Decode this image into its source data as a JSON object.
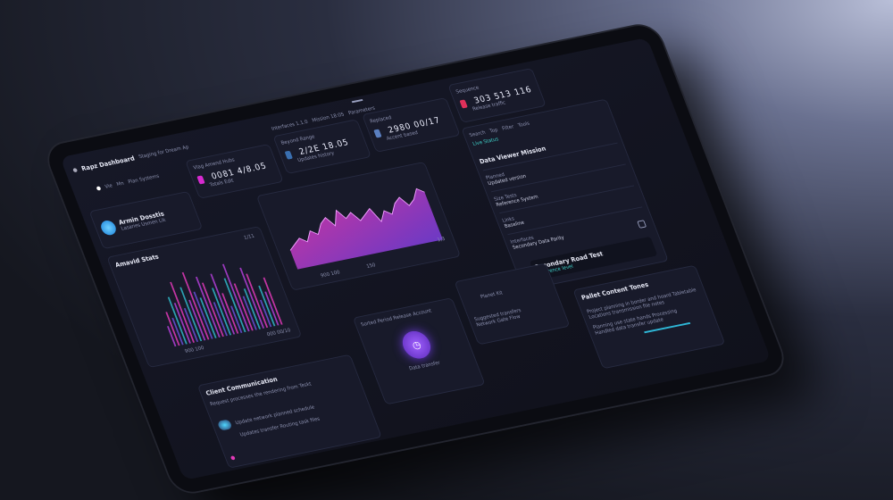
{
  "header": {
    "title": "Rapz Dashboard",
    "subtitle": "Staging for Dream Ap",
    "nav": [
      "Interfaces 1.1.0",
      "Mission 18:05",
      "Parameters"
    ],
    "sub": [
      "Vie",
      "Mn",
      "Plan Systems"
    ]
  },
  "stats": [
    {
      "label": "Vlag Amend Hubs",
      "value": "0081 4/8.05",
      "sub": "Totals Edit",
      "color": "#d62ad0"
    },
    {
      "label": "Beyond Range",
      "value": "2/2E 18.05",
      "sub": "Updates history",
      "color": "#3a6fb0"
    },
    {
      "label": "Replaced",
      "value": "2980 00/17",
      "sub": "Accent based",
      "color": "#5a7fc0"
    },
    {
      "label": "Sequence",
      "value": "303 513 116",
      "sub": "Release traffic",
      "color": "#e0305a"
    }
  ],
  "profile": {
    "name": "Armin Dosstis",
    "sub": "Lasaries Usmen Lik"
  },
  "bar_chart": {
    "label": "Amavid Stats",
    "footer": "900 100",
    "value": "000 00/10",
    "tick": "1/11",
    "values": [
      3,
      5,
      4,
      7,
      6,
      9,
      5,
      8,
      6,
      10,
      7,
      6,
      9,
      8,
      5,
      7,
      9,
      6,
      4,
      8,
      10,
      7,
      5,
      6,
      9,
      8,
      4,
      6,
      5,
      7
    ],
    "colors": [
      "#b33fd8",
      "#e23ab8",
      "#6a4fd8",
      "#2fb8c8"
    ]
  },
  "area_chart": {
    "footer": [
      "900 100",
      "150"
    ],
    "value": "1/3",
    "values": [
      4,
      5,
      6,
      5,
      7,
      6,
      8,
      9,
      7,
      10,
      8,
      9,
      7,
      8,
      9,
      6,
      8,
      7,
      9,
      10,
      8,
      9,
      11,
      10
    ],
    "colors": [
      "#e23ab8",
      "#7b3fe0"
    ]
  },
  "right_panel": {
    "tools": [
      "Search",
      "Top",
      "Filter",
      "Tools"
    ],
    "tab": "Live Status",
    "title": "Data Viewer Mission",
    "items": [
      {
        "label": "Planned",
        "value": "Updated version"
      },
      {
        "label": "Size Tests",
        "value": "Reference System"
      },
      {
        "label": "Links",
        "value": "Baseline"
      },
      {
        "label": "Interfaces",
        "value": "Secondary Data Parity"
      }
    ],
    "banner": "Secondary Road Test",
    "banner_sub": "Reference level"
  },
  "notes": {
    "title": "Pallet Content Tones",
    "lines": [
      "Project planning in border and hoard Tabletable",
      "Locations transmission file notes",
      "Planning use state hands Processing",
      "Handled data transfer update"
    ]
  },
  "message": {
    "title": "Client Communication",
    "lines": [
      "Request processes the rendering from Teskt",
      "Update network planned schedule",
      "Updates transfer Routing task files"
    ]
  },
  "center": {
    "title": "Sorted Period Release Account",
    "caption": "Data transfer"
  },
  "small": {
    "title": "Planet Kit",
    "lines": [
      "Suggested transfers",
      "Network Gate Flow"
    ]
  }
}
